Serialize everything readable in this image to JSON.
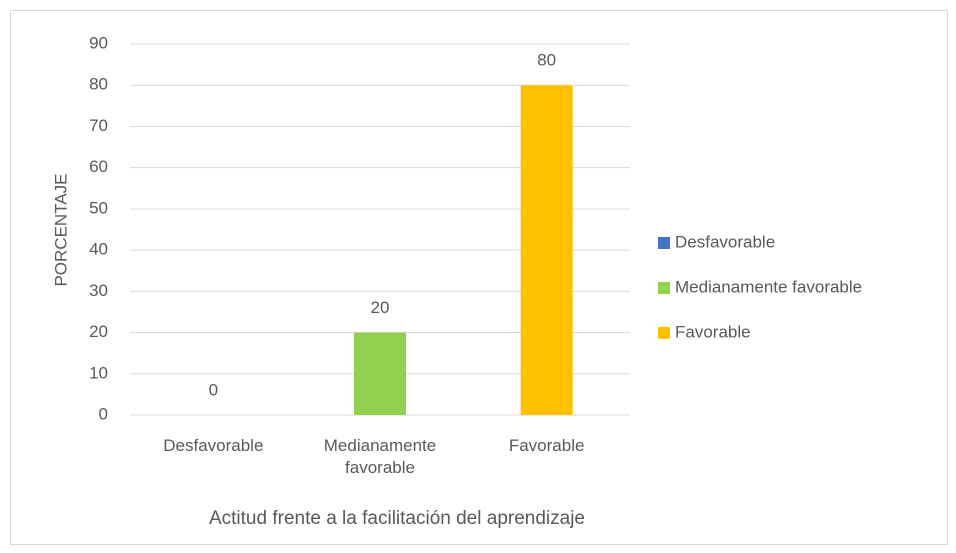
{
  "chart_data": {
    "type": "bar",
    "categories": [
      "Desfavorable",
      "Medianamente favorable",
      "Favorable"
    ],
    "values": [
      0,
      20,
      80
    ],
    "colors": [
      "#4472c4",
      "#92d050",
      "#ffc000"
    ],
    "ylabel": "PORCENTAJE",
    "xlabel": "Actitud frente a la facilitación del aprendizaje",
    "ylim": [
      0,
      90
    ],
    "yticks": [
      0,
      10,
      20,
      30,
      40,
      50,
      60,
      70,
      80,
      90
    ],
    "grid": true,
    "legend": "right"
  }
}
